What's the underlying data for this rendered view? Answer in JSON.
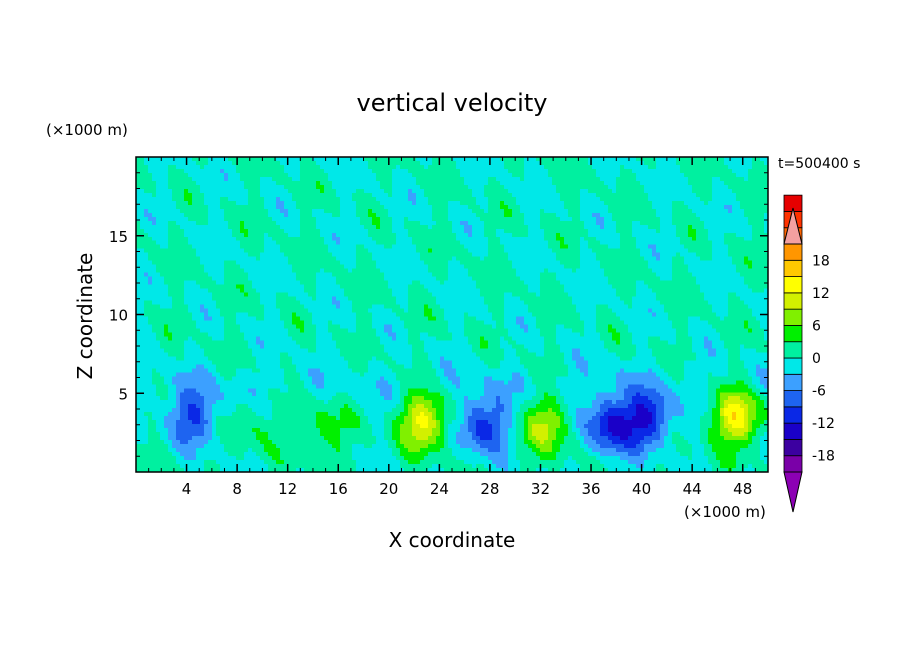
{
  "chart_data": {
    "type": "heatmap",
    "title": "vertical velocity",
    "xlabel": "X coordinate",
    "ylabel": "Z coordinate",
    "x_unit": "(×1000 m)",
    "y_unit": "(×1000 m)",
    "time_label": "t=500400 s",
    "xlim": [
      0,
      50
    ],
    "ylim": [
      0,
      20
    ],
    "x_ticks": [
      4,
      8,
      12,
      16,
      20,
      24,
      28,
      32,
      36,
      40,
      44,
      48
    ],
    "y_ticks": [
      5,
      10,
      15
    ],
    "colorbar": {
      "min": -21,
      "max": 21,
      "step": 3,
      "tick_values": [
        18,
        12,
        6,
        0,
        -6,
        -12,
        -18
      ],
      "colors": [
        "#7a00a8",
        "#3c00a0",
        "#1a00c8",
        "#0a28e6",
        "#1e64f0",
        "#3ca0ff",
        "#00e8e8",
        "#00f0a0",
        "#00f000",
        "#80f000",
        "#d2f000",
        "#ffff00",
        "#ffc800",
        "#ff9600",
        "#ff6400",
        "#ff3200",
        "#e60000"
      ],
      "over_color": "#f4a0a0",
      "under_color": "#8c00b4"
    },
    "features": [
      {
        "x": 4.5,
        "z": 3.5,
        "w": -9
      },
      {
        "x": 9.5,
        "z": 3.0,
        "w": 3
      },
      {
        "x": 14.8,
        "z": 2.5,
        "w": 5
      },
      {
        "x": 22.8,
        "z": 3.2,
        "w": 13
      },
      {
        "x": 27.5,
        "z": 3.0,
        "w": -11
      },
      {
        "x": 32.5,
        "z": 3.0,
        "w": 9
      },
      {
        "x": 37.5,
        "z": 3.0,
        "w": -12
      },
      {
        "x": 40.5,
        "z": 3.3,
        "w": -12
      },
      {
        "x": 47.5,
        "z": 3.5,
        "w": 14
      }
    ]
  }
}
